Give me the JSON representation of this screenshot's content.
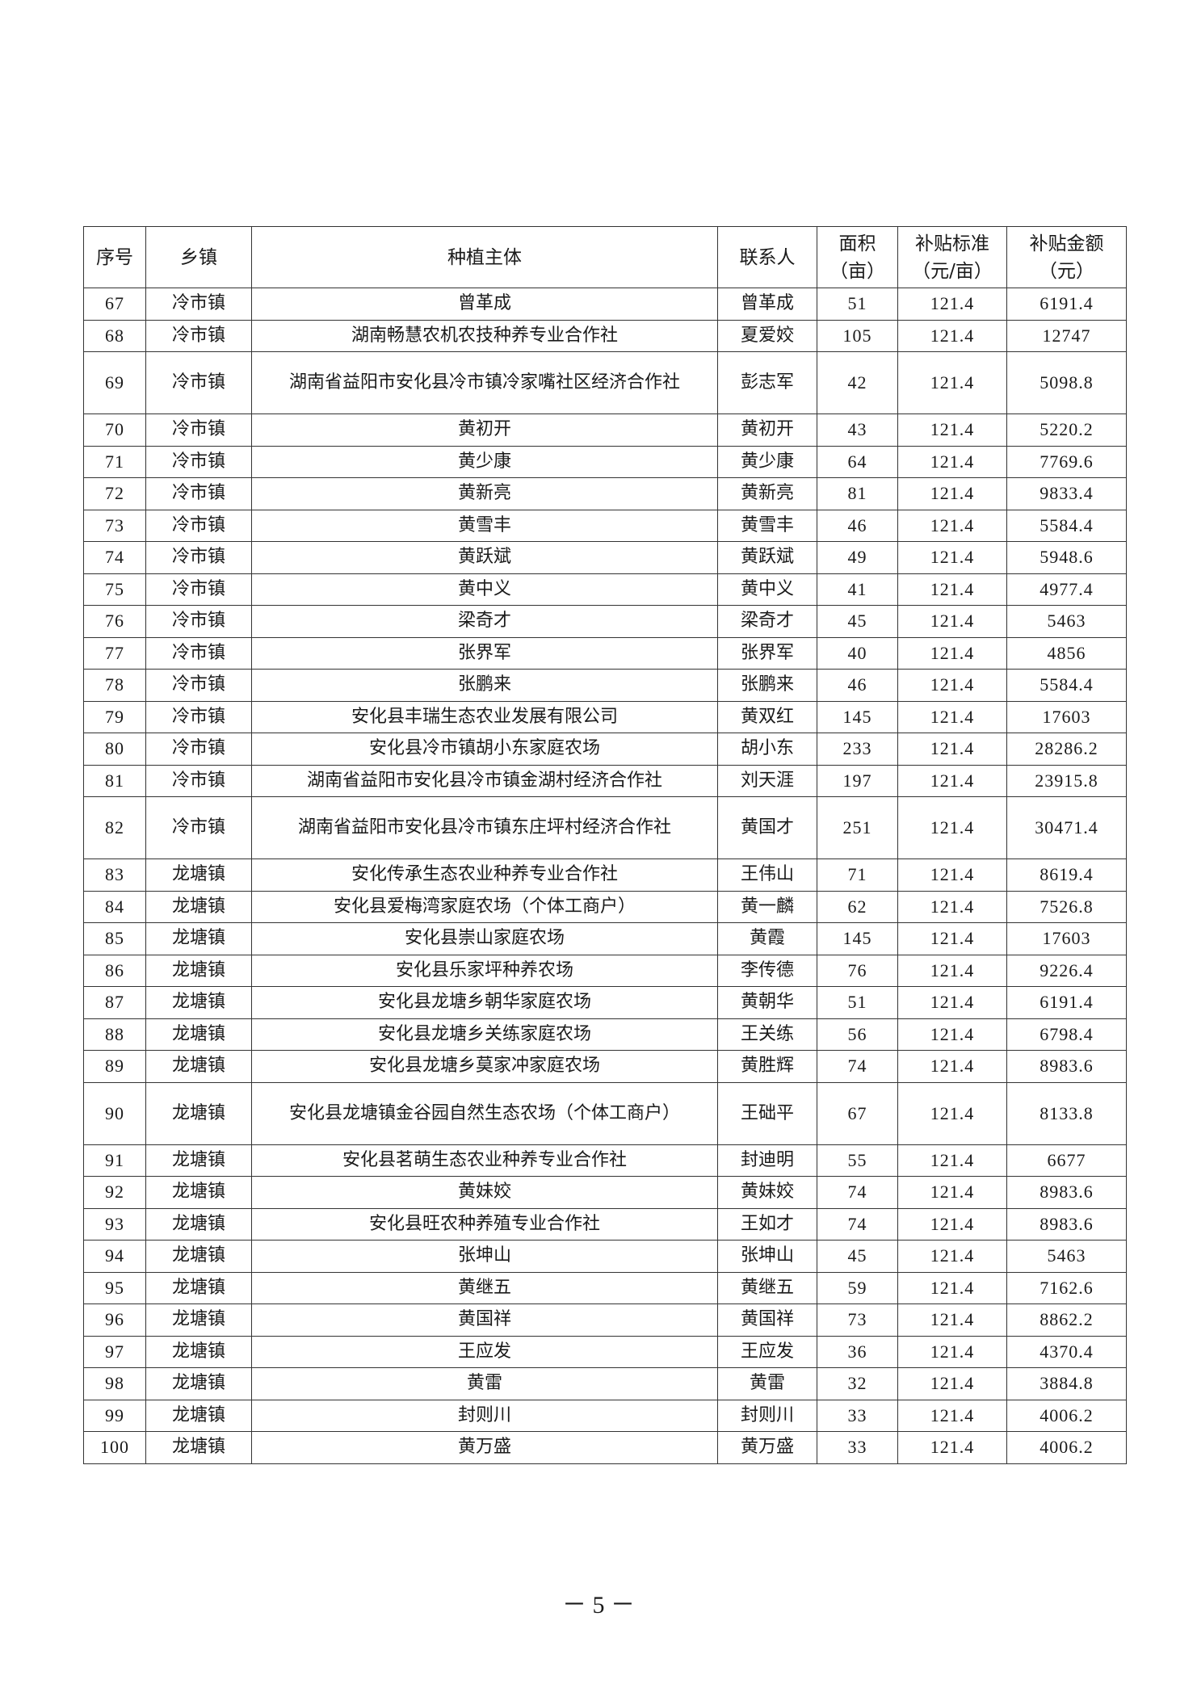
{
  "table": {
    "headers": [
      "序号",
      "乡镇",
      "种植主体",
      "联系人",
      "面积（亩）",
      "补贴标准（元/亩）",
      "补贴金额（元）"
    ],
    "rows": [
      [
        "67",
        "冷市镇",
        "曾革成",
        "曾革成",
        "51",
        "121.4",
        "6191.4"
      ],
      [
        "68",
        "冷市镇",
        "湖南畅慧农机农技种养专业合作社",
        "夏爱姣",
        "105",
        "121.4",
        "12747"
      ],
      [
        "69",
        "冷市镇",
        "湖南省益阳市安化县冷市镇冷家嘴社区经济合作社",
        "彭志军",
        "42",
        "121.4",
        "5098.8"
      ],
      [
        "70",
        "冷市镇",
        "黄初开",
        "黄初开",
        "43",
        "121.4",
        "5220.2"
      ],
      [
        "71",
        "冷市镇",
        "黄少康",
        "黄少康",
        "64",
        "121.4",
        "7769.6"
      ],
      [
        "72",
        "冷市镇",
        "黄新亮",
        "黄新亮",
        "81",
        "121.4",
        "9833.4"
      ],
      [
        "73",
        "冷市镇",
        "黄雪丰",
        "黄雪丰",
        "46",
        "121.4",
        "5584.4"
      ],
      [
        "74",
        "冷市镇",
        "黄跃斌",
        "黄跃斌",
        "49",
        "121.4",
        "5948.6"
      ],
      [
        "75",
        "冷市镇",
        "黄中义",
        "黄中义",
        "41",
        "121.4",
        "4977.4"
      ],
      [
        "76",
        "冷市镇",
        "梁奇才",
        "梁奇才",
        "45",
        "121.4",
        "5463"
      ],
      [
        "77",
        "冷市镇",
        "张界军",
        "张界军",
        "40",
        "121.4",
        "4856"
      ],
      [
        "78",
        "冷市镇",
        "张鹏来",
        "张鹏来",
        "46",
        "121.4",
        "5584.4"
      ],
      [
        "79",
        "冷市镇",
        "安化县丰瑞生态农业发展有限公司",
        "黄双红",
        "145",
        "121.4",
        "17603"
      ],
      [
        "80",
        "冷市镇",
        "安化县冷市镇胡小东家庭农场",
        "胡小东",
        "233",
        "121.4",
        "28286.2"
      ],
      [
        "81",
        "冷市镇",
        "湖南省益阳市安化县冷市镇金湖村经济合作社",
        "刘天涯",
        "197",
        "121.4",
        "23915.8"
      ],
      [
        "82",
        "冷市镇",
        "湖南省益阳市安化县冷市镇东庄坪村经济合作社",
        "黄国才",
        "251",
        "121.4",
        "30471.4"
      ],
      [
        "83",
        "龙塘镇",
        "安化传承生态农业种养专业合作社",
        "王伟山",
        "71",
        "121.4",
        "8619.4"
      ],
      [
        "84",
        "龙塘镇",
        "安化县爱梅湾家庭农场（个体工商户）",
        "黄一麟",
        "62",
        "121.4",
        "7526.8"
      ],
      [
        "85",
        "龙塘镇",
        "安化县崇山家庭农场",
        "黄霞",
        "145",
        "121.4",
        "17603"
      ],
      [
        "86",
        "龙塘镇",
        "安化县乐家坪种养农场",
        "李传德",
        "76",
        "121.4",
        "9226.4"
      ],
      [
        "87",
        "龙塘镇",
        "安化县龙塘乡朝华家庭农场",
        "黄朝华",
        "51",
        "121.4",
        "6191.4"
      ],
      [
        "88",
        "龙塘镇",
        "安化县龙塘乡关练家庭农场",
        "王关练",
        "56",
        "121.4",
        "6798.4"
      ],
      [
        "89",
        "龙塘镇",
        "安化县龙塘乡莫家冲家庭农场",
        "黄胜辉",
        "74",
        "121.4",
        "8983.6"
      ],
      [
        "90",
        "龙塘镇",
        "安化县龙塘镇金谷园自然生态农场（个体工商户）",
        "王础平",
        "67",
        "121.4",
        "8133.8"
      ],
      [
        "91",
        "龙塘镇",
        "安化县茗萌生态农业种养专业合作社",
        "封迪明",
        "55",
        "121.4",
        "6677"
      ],
      [
        "92",
        "龙塘镇",
        "黄妹姣",
        "黄妹姣",
        "74",
        "121.4",
        "8983.6"
      ],
      [
        "93",
        "龙塘镇",
        "安化县旺农种养殖专业合作社",
        "王如才",
        "74",
        "121.4",
        "8983.6"
      ],
      [
        "94",
        "龙塘镇",
        "张坤山",
        "张坤山",
        "45",
        "121.4",
        "5463"
      ],
      [
        "95",
        "龙塘镇",
        "黄继五",
        "黄继五",
        "59",
        "121.4",
        "7162.6"
      ],
      [
        "96",
        "龙塘镇",
        "黄国祥",
        "黄国祥",
        "73",
        "121.4",
        "8862.2"
      ],
      [
        "97",
        "龙塘镇",
        "王应发",
        "王应发",
        "36",
        "121.4",
        "4370.4"
      ],
      [
        "98",
        "龙塘镇",
        "黄雷",
        "黄雷",
        "32",
        "121.4",
        "3884.8"
      ],
      [
        "99",
        "龙塘镇",
        "封则川",
        "封则川",
        "33",
        "121.4",
        "4006.2"
      ],
      [
        "100",
        "龙塘镇",
        "黄万盛",
        "黄万盛",
        "33",
        "121.4",
        "4006.2"
      ]
    ]
  },
  "footer": {
    "page_number": "－ 5 －"
  }
}
